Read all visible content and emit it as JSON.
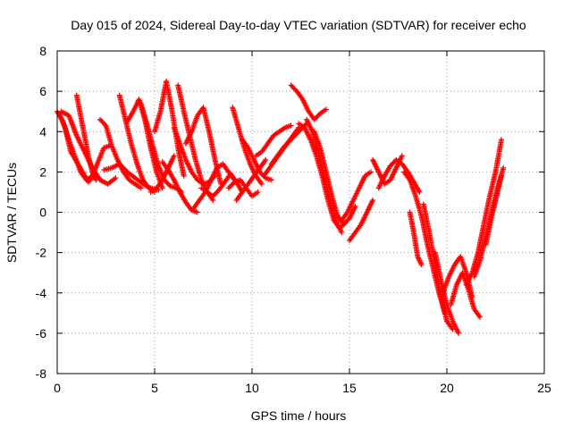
{
  "chart_data": {
    "type": "scatter",
    "title": "Day 015 of 2024, Sidereal Day-to-day VTEC variation (SDTVAR) for receiver echo",
    "xlabel": "GPS time / hours",
    "ylabel": "SDTVAR / TECUs",
    "xlim": [
      0,
      25
    ],
    "ylim": [
      -8,
      8
    ],
    "x_ticks": [
      0,
      5,
      10,
      15,
      20,
      25
    ],
    "y_ticks": [
      -8,
      -6,
      -4,
      -2,
      0,
      2,
      4,
      6,
      8
    ],
    "x_tick_labels": [
      "0",
      "5",
      "10",
      "15",
      "20",
      "25"
    ],
    "y_tick_labels": [
      "-8",
      "-6",
      "-4",
      "-2",
      "0",
      "2",
      "4",
      "6",
      "8"
    ],
    "grid": true,
    "legend": "none",
    "marker": "plus",
    "color": "#ff0000",
    "series": [
      {
        "x": [
          0.0,
          0.3,
          0.6,
          0.9,
          1.2,
          1.5,
          1.8,
          2.1,
          2.4,
          2.7
        ],
        "y": [
          5.0,
          4.5,
          3.6,
          2.8,
          2.0,
          1.6,
          1.8,
          2.5,
          3.2,
          3.3
        ]
      },
      {
        "x": [
          0.1,
          0.4,
          0.7,
          1.0,
          1.3,
          1.6,
          1.9
        ],
        "y": [
          4.9,
          4.2,
          3.0,
          2.5,
          2.0,
          1.5,
          1.8
        ]
      },
      {
        "x": [
          0.2,
          0.6,
          1.0,
          1.4,
          1.8,
          2.2,
          2.6,
          3.0
        ],
        "y": [
          5.0,
          4.8,
          3.8,
          3.0,
          2.2,
          1.6,
          1.4,
          1.7
        ]
      },
      {
        "x": [
          1.0,
          1.2,
          1.4,
          1.6,
          1.8,
          2.0
        ],
        "y": [
          5.8,
          4.8,
          3.8,
          2.8,
          2.0,
          1.6
        ]
      },
      {
        "x": [
          2.2,
          2.5,
          2.8,
          3.1,
          3.4,
          3.7,
          4.0,
          4.3
        ],
        "y": [
          4.6,
          4.3,
          3.3,
          2.6,
          2.0,
          1.6,
          1.4,
          1.2
        ]
      },
      {
        "x": [
          2.4,
          2.8,
          3.2,
          3.6,
          4.0,
          4.4,
          4.8,
          5.2
        ],
        "y": [
          2.1,
          2.2,
          2.4,
          2.0,
          1.7,
          1.4,
          1.2,
          1.1
        ]
      },
      {
        "x": [
          3.2,
          3.5,
          3.8,
          4.1,
          4.4,
          4.7,
          5.0
        ],
        "y": [
          5.8,
          4.6,
          3.4,
          2.4,
          1.6,
          1.2,
          1.0
        ]
      },
      {
        "x": [
          3.6,
          3.9,
          4.2,
          4.5,
          4.8,
          5.1,
          5.4
        ],
        "y": [
          4.5,
          5.0,
          5.6,
          4.6,
          3.2,
          2.0,
          1.2
        ]
      },
      {
        "x": [
          4.3,
          4.6,
          4.9,
          5.2,
          5.5,
          5.8,
          6.1,
          6.4
        ],
        "y": [
          5.4,
          4.4,
          3.3,
          2.3,
          1.6,
          1.3,
          1.2,
          1.0
        ]
      },
      {
        "x": [
          4.8,
          5.1,
          5.4,
          5.7,
          6.0
        ],
        "y": [
          1.0,
          1.2,
          1.6,
          2.2,
          2.8
        ]
      },
      {
        "x": [
          5.0,
          5.3,
          5.6,
          5.9,
          6.2,
          6.5
        ],
        "y": [
          4.0,
          5.0,
          6.5,
          5.0,
          3.2,
          1.8
        ]
      },
      {
        "x": [
          5.4,
          5.7,
          6.0,
          6.3,
          6.6,
          6.9,
          7.2
        ],
        "y": [
          2.5,
          2.1,
          1.6,
          1.0,
          0.5,
          0.1,
          0.0
        ]
      },
      {
        "x": [
          6.2,
          6.5,
          6.8,
          7.1,
          7.4,
          7.7,
          8.0
        ],
        "y": [
          6.3,
          5.0,
          3.8,
          2.6,
          1.6,
          1.0,
          0.6
        ]
      },
      {
        "x": [
          6.0,
          6.3,
          6.6,
          6.9,
          7.2,
          7.5,
          7.8,
          8.1
        ],
        "y": [
          4.2,
          3.4,
          2.6,
          2.0,
          1.6,
          1.4,
          1.5,
          1.8
        ]
      },
      {
        "x": [
          6.6,
          6.9,
          7.2,
          7.5,
          7.8,
          8.1,
          8.4
        ],
        "y": [
          3.4,
          4.0,
          4.8,
          5.2,
          4.0,
          2.6,
          1.4
        ]
      },
      {
        "x": [
          7.0,
          7.3,
          7.6,
          7.9,
          8.2,
          8.5,
          8.8,
          9.1
        ],
        "y": [
          0.2,
          0.6,
          1.0,
          1.6,
          2.2,
          2.4,
          2.0,
          1.6
        ]
      },
      {
        "x": [
          7.4,
          7.7,
          8.0,
          8.3,
          8.6,
          8.9,
          9.2,
          9.5
        ],
        "y": [
          1.2,
          1.0,
          0.8,
          1.1,
          1.5,
          1.9,
          1.5,
          1.0
        ]
      },
      {
        "x": [
          9.0,
          9.3,
          9.6,
          9.9,
          10.2,
          10.5
        ],
        "y": [
          5.2,
          4.2,
          3.2,
          2.4,
          1.8,
          1.4
        ]
      },
      {
        "x": [
          8.8,
          9.1,
          9.4,
          9.7,
          10.0,
          10.3
        ],
        "y": [
          1.2,
          1.5,
          1.6,
          1.2,
          0.8,
          1.0
        ]
      },
      {
        "x": [
          9.2,
          9.5,
          9.8,
          10.1,
          10.4,
          10.7
        ],
        "y": [
          0.6,
          1.0,
          1.4,
          1.8,
          2.2,
          2.6
        ]
      },
      {
        "x": [
          9.5,
          9.8,
          10.1,
          10.4,
          10.7,
          11.0
        ],
        "y": [
          3.6,
          3.2,
          2.6,
          2.0,
          1.7,
          1.6
        ]
      },
      {
        "x": [
          10.2,
          10.5,
          10.8,
          11.1,
          11.4,
          11.7,
          12.0
        ],
        "y": [
          2.8,
          3.0,
          3.4,
          3.8,
          4.0,
          4.2,
          4.3
        ]
      },
      {
        "x": [
          10.6,
          10.9,
          11.2,
          11.5,
          11.8,
          12.1,
          12.4
        ],
        "y": [
          1.8,
          2.2,
          2.6,
          3.0,
          3.4,
          3.8,
          4.2
        ]
      },
      {
        "x": [
          11.0,
          11.3,
          11.6,
          11.9,
          12.2,
          12.5,
          12.8
        ],
        "y": [
          2.4,
          2.8,
          3.2,
          3.5,
          3.8,
          4.1,
          4.4
        ]
      },
      {
        "x": [
          12.0,
          12.3,
          12.6,
          12.9,
          13.2,
          13.5,
          13.8
        ],
        "y": [
          6.3,
          6.0,
          5.6,
          5.0,
          4.6,
          4.9,
          5.1
        ]
      },
      {
        "x": [
          12.4,
          12.7,
          13.0,
          13.3,
          13.6,
          13.9,
          14.2,
          14.5,
          14.8
        ],
        "y": [
          4.4,
          4.2,
          3.6,
          2.8,
          1.8,
          0.6,
          -0.4,
          -0.8,
          -0.5
        ]
      },
      {
        "x": [
          12.8,
          13.1,
          13.4,
          13.7,
          14.0,
          14.3,
          14.6
        ],
        "y": [
          4.6,
          4.0,
          3.0,
          1.8,
          0.6,
          -0.4,
          -1.0
        ]
      },
      {
        "x": [
          13.2,
          13.5,
          13.8,
          14.1,
          14.4,
          14.7,
          15.0,
          15.3
        ],
        "y": [
          4.0,
          3.2,
          2.0,
          0.8,
          -0.2,
          -0.6,
          -0.3,
          0.3
        ]
      },
      {
        "x": [
          14.6,
          14.9,
          15.2,
          15.5,
          15.8,
          16.1
        ],
        "y": [
          -0.4,
          0.0,
          0.6,
          1.2,
          1.8,
          2.0
        ]
      },
      {
        "x": [
          15.0,
          15.3,
          15.6,
          15.9,
          16.2
        ],
        "y": [
          -1.4,
          -1.0,
          -0.6,
          0.0,
          0.6
        ]
      },
      {
        "x": [
          16.2,
          16.5,
          16.8,
          17.1,
          17.4,
          17.7
        ],
        "y": [
          2.6,
          2.0,
          1.4,
          1.6,
          2.2,
          2.8
        ]
      },
      {
        "x": [
          16.5,
          16.8,
          17.1,
          17.4,
          17.7,
          18.0,
          18.3,
          18.6
        ],
        "y": [
          1.2,
          1.8,
          2.3,
          2.6,
          2.4,
          2.0,
          1.5,
          1.0
        ]
      },
      {
        "x": [
          17.8,
          18.1,
          18.4,
          18.7,
          19.0,
          19.3,
          19.6,
          19.9
        ],
        "y": [
          2.0,
          1.6,
          0.8,
          -0.2,
          -1.6,
          -2.8,
          -4.0,
          -5.0
        ]
      },
      {
        "x": [
          18.1,
          18.3,
          18.5,
          18.7
        ],
        "y": [
          0.0,
          -1.0,
          -2.2,
          -2.6
        ]
      },
      {
        "x": [
          18.8,
          19.1,
          19.4,
          19.7,
          20.0,
          20.3
        ],
        "y": [
          0.4,
          -1.0,
          -2.6,
          -4.2,
          -5.4,
          -5.8
        ]
      },
      {
        "x": [
          19.4,
          19.7,
          20.0,
          20.3,
          20.6
        ],
        "y": [
          -2.0,
          -3.4,
          -4.6,
          -5.4,
          -6.0
        ]
      },
      {
        "x": [
          19.8,
          20.1,
          20.4,
          20.7,
          21.0,
          21.3
        ],
        "y": [
          -4.0,
          -3.2,
          -2.6,
          -2.2,
          -3.0,
          -4.2
        ]
      },
      {
        "x": [
          20.2,
          20.5,
          20.8,
          21.1,
          21.4,
          21.7
        ],
        "y": [
          -4.6,
          -3.6,
          -3.0,
          -3.8,
          -4.8,
          -5.2
        ]
      },
      {
        "x": [
          21.0,
          21.3,
          21.6,
          21.9,
          22.2,
          22.5,
          22.8
        ],
        "y": [
          -3.6,
          -3.0,
          -2.0,
          -0.6,
          0.8,
          2.0,
          3.6
        ]
      },
      {
        "x": [
          21.4,
          21.7,
          22.0,
          22.3,
          22.6,
          22.9
        ],
        "y": [
          -3.2,
          -2.4,
          -1.2,
          0.0,
          1.2,
          2.2
        ]
      },
      {
        "x": [
          22.0,
          22.3,
          22.6,
          22.8
        ],
        "y": [
          -1.6,
          -0.2,
          1.0,
          1.8
        ]
      }
    ]
  }
}
